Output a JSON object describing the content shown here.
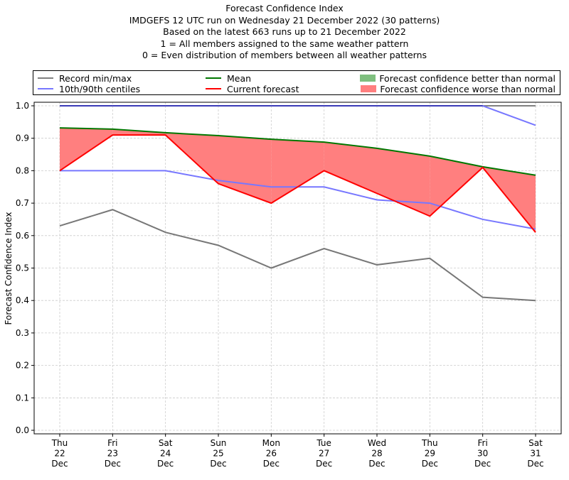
{
  "chart_data": {
    "type": "line",
    "title": "Forecast Confidence Index",
    "subtitle_lines": [
      "IMDGEFS 12 UTC run on Wednesday 21 December 2022 (30 patterns)",
      "Based on the latest 663 runs up to 21 December 2022",
      "1 = All members assigned to the same weather pattern",
      "0 = Even distribution of members between all weather patterns"
    ],
    "xlabel": "",
    "ylabel": "Forecast Confidence Index",
    "ylim": [
      0.0,
      1.0
    ],
    "yticks": [
      "0.0",
      "0.1",
      "0.2",
      "0.3",
      "0.4",
      "0.5",
      "0.6",
      "0.7",
      "0.8",
      "0.9",
      "1.0"
    ],
    "categories": [
      [
        "Thu",
        "22",
        "Dec"
      ],
      [
        "Fri",
        "23",
        "Dec"
      ],
      [
        "Sat",
        "24",
        "Dec"
      ],
      [
        "Sun",
        "25",
        "Dec"
      ],
      [
        "Mon",
        "26",
        "Dec"
      ],
      [
        "Tue",
        "27",
        "Dec"
      ],
      [
        "Wed",
        "28",
        "Dec"
      ],
      [
        "Thu",
        "29",
        "Dec"
      ],
      [
        "Fri",
        "30",
        "Dec"
      ],
      [
        "Sat",
        "31",
        "Dec"
      ]
    ],
    "grid": true,
    "legend_position": "top",
    "series": [
      {
        "name": "Record max",
        "legend_group": "Record min/max",
        "color": "#808080",
        "values": [
          1.0,
          1.0,
          1.0,
          1.0,
          1.0,
          1.0,
          1.0,
          1.0,
          1.0,
          1.0
        ]
      },
      {
        "name": "Record min",
        "legend_group": "Record min/max",
        "color": "#777777",
        "values": [
          0.63,
          0.68,
          0.61,
          0.57,
          0.5,
          0.56,
          0.51,
          0.53,
          0.41,
          0.4
        ]
      },
      {
        "name": "90th centile",
        "legend_group": "10th/90th centiles",
        "color": "#7777ff",
        "values": [
          1.0,
          1.0,
          1.0,
          1.0,
          1.0,
          1.0,
          1.0,
          1.0,
          1.0,
          0.94
        ]
      },
      {
        "name": "10th centile",
        "legend_group": "10th/90th centiles",
        "color": "#7777ff",
        "values": [
          0.8,
          0.8,
          0.8,
          0.77,
          0.75,
          0.75,
          0.71,
          0.7,
          0.65,
          0.62
        ]
      },
      {
        "name": "Mean",
        "legend_group": "Mean",
        "color": "#007700",
        "values": [
          0.932,
          0.928,
          0.917,
          0.908,
          0.897,
          0.888,
          0.869,
          0.845,
          0.812,
          0.786
        ]
      },
      {
        "name": "Current forecast",
        "legend_group": "Current forecast",
        "color": "#ff0000",
        "values": [
          0.8,
          0.91,
          0.91,
          0.76,
          0.7,
          0.8,
          0.73,
          0.66,
          0.81,
          0.61
        ]
      }
    ],
    "fills": [
      {
        "name": "Forecast confidence better than normal",
        "color": "#7fbf7f"
      },
      {
        "name": "Forecast confidence worse than normal",
        "color": "#ff7f7f"
      }
    ]
  },
  "legend": {
    "items": [
      {
        "label": "Record min/max",
        "color": "#808080",
        "kind": "line"
      },
      {
        "label": "10th/90th centiles",
        "color": "#7777ff",
        "kind": "line"
      },
      {
        "label": "Mean",
        "color": "#007700",
        "kind": "line"
      },
      {
        "label": "Current forecast",
        "color": "#ff0000",
        "kind": "line"
      },
      {
        "label": "Forecast confidence better than normal",
        "color": "#7fbf7f",
        "kind": "patch"
      },
      {
        "label": "Forecast confidence worse than normal",
        "color": "#ff7f7f",
        "kind": "patch"
      }
    ]
  }
}
